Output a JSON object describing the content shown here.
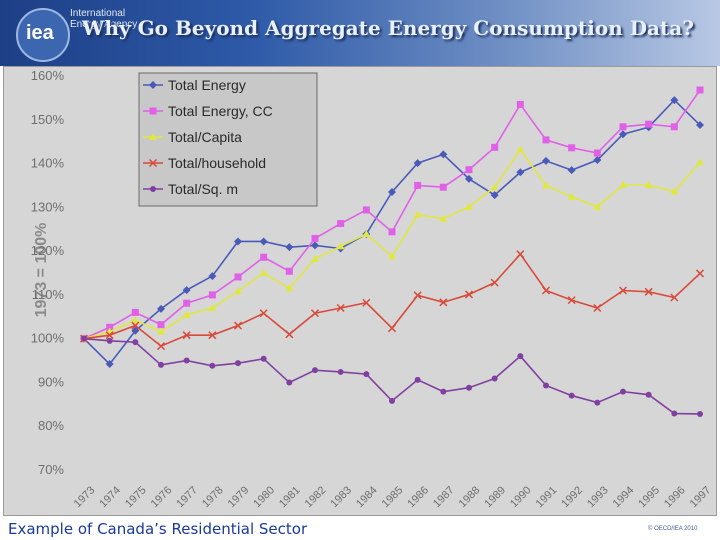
{
  "header": {
    "logo": "iea",
    "agency": "International Energy Agency",
    "title": "Why Go Beyond Aggregate Energy Consumption Data?"
  },
  "caption": "Example of Canada’s Residential Sector",
  "copyright": "© OECD/IEA 2010",
  "chart_data": {
    "type": "line",
    "title": "",
    "xlabel": "",
    "ylabel": "1973 = 100%",
    "ylim": [
      70,
      160
    ],
    "yticks": [
      "70%",
      "80%",
      "90%",
      "100%",
      "110%",
      "120%",
      "130%",
      "140%",
      "150%",
      "160%"
    ],
    "categories": [
      "1973",
      "1974",
      "1975",
      "1976",
      "1977",
      "1978",
      "1979",
      "1980",
      "1981",
      "1982",
      "1983",
      "1984",
      "1985",
      "1986",
      "1987",
      "1988",
      "1989",
      "1990",
      "1991",
      "1992",
      "1993",
      "1994",
      "1995",
      "1996",
      "1997"
    ],
    "series": [
      {
        "name": "Total Energy",
        "color": "#4a5ab8",
        "marker": "diamond",
        "values": [
          100,
          94.2,
          101.8,
          106.8,
          111.1,
          114.3,
          122.2,
          122.2,
          120.9,
          121.3,
          120.6,
          123.9,
          133.5,
          140.1,
          142.1,
          136.5,
          132.8,
          138.0,
          140.6,
          138.5,
          140.8,
          146.7,
          148.3,
          154.5,
          148.8
        ]
      },
      {
        "name": "Total Energy, CC",
        "color": "#e060e8",
        "marker": "square",
        "values": [
          100,
          102.6,
          106.0,
          103.2,
          108.1,
          110.0,
          114.1,
          118.6,
          115.4,
          122.9,
          126.3,
          129.4,
          124.4,
          135.0,
          134.6,
          138.6,
          143.7,
          153.5,
          145.4,
          143.6,
          142.4,
          148.4,
          149.0,
          148.4,
          156.8
        ]
      },
      {
        "name": "Total/Capita",
        "color": "#e0e840",
        "marker": "triangle",
        "values": [
          100,
          101.6,
          104.2,
          101.6,
          105.4,
          107.0,
          110.8,
          115.0,
          111.5,
          118.2,
          121.1,
          123.9,
          118.8,
          128.3,
          127.4,
          130.1,
          134.6,
          143.2,
          135.0,
          132.4,
          130.1,
          135.1,
          135.1,
          133.6,
          140.3
        ]
      },
      {
        "name": "Total/household",
        "color": "#d84a3a",
        "marker": "x",
        "values": [
          100,
          100.8,
          103.0,
          98.3,
          100.8,
          100.8,
          103.0,
          105.8,
          101.0,
          105.8,
          107.0,
          108.2,
          102.4,
          109.9,
          108.3,
          110.1,
          112.8,
          119.3,
          111.0,
          108.8,
          107.0,
          111.0,
          110.7,
          109.4,
          114.9
        ]
      },
      {
        "name": "Total/Sq. m",
        "color": "#8040a0",
        "marker": "circle",
        "values": [
          100,
          99.5,
          99.2,
          94.0,
          95.0,
          93.8,
          94.4,
          95.4,
          90.0,
          92.8,
          92.4,
          91.9,
          85.8,
          90.6,
          87.9,
          88.8,
          90.9,
          96.0,
          89.3,
          87.0,
          85.4,
          87.9,
          87.2,
          82.9,
          82.8
        ]
      }
    ],
    "legend": "top-left",
    "grid": false
  }
}
